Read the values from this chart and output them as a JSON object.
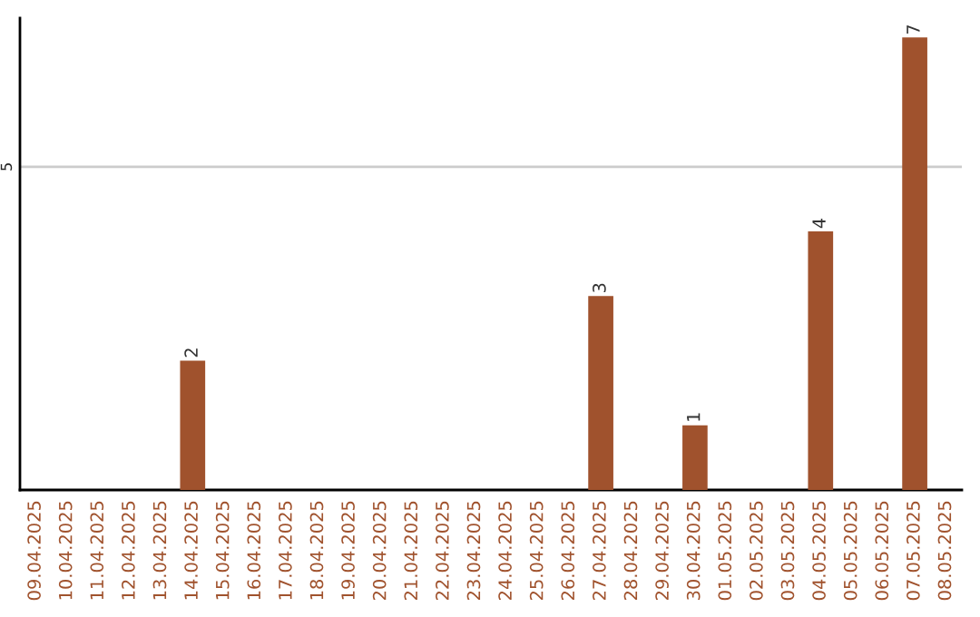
{
  "chart_data": {
    "type": "bar",
    "categories": [
      "09.04.2025",
      "10.04.2025",
      "11.04.2025",
      "12.04.2025",
      "13.04.2025",
      "14.04.2025",
      "15.04.2025",
      "16.04.2025",
      "17.04.2025",
      "18.04.2025",
      "19.04.2025",
      "20.04.2025",
      "21.04.2025",
      "22.04.2025",
      "23.04.2025",
      "24.04.2025",
      "25.04.2025",
      "26.04.2025",
      "27.04.2025",
      "28.04.2025",
      "29.04.2025",
      "30.04.2025",
      "01.05.2025",
      "02.05.2025",
      "03.05.2025",
      "04.05.2025",
      "05.05.2025",
      "06.05.2025",
      "07.05.2025",
      "08.05.2025"
    ],
    "values": [
      0,
      0,
      0,
      0,
      0,
      2,
      0,
      0,
      0,
      0,
      0,
      0,
      0,
      0,
      0,
      0,
      0,
      0,
      3,
      0,
      0,
      1,
      0,
      0,
      0,
      4,
      0,
      0,
      7,
      0
    ],
    "color": "#a0522d",
    "value_labels": [
      null,
      null,
      null,
      null,
      null,
      "2",
      null,
      null,
      null,
      null,
      null,
      null,
      null,
      null,
      null,
      null,
      null,
      null,
      "3",
      null,
      null,
      "1",
      null,
      null,
      null,
      "4",
      null,
      null,
      "7",
      null
    ],
    "ylim": [
      0,
      7.3
    ],
    "yticks": [
      5
    ],
    "grid": "y"
  }
}
